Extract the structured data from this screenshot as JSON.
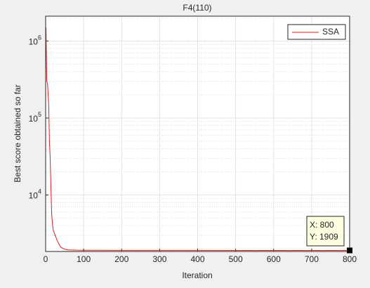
{
  "chart_data": {
    "type": "line",
    "title": "F4(110)",
    "xlabel": "Iteration",
    "ylabel": "Best score obtained so far",
    "x": [
      1,
      2,
      3,
      5,
      8,
      10,
      12,
      14,
      16,
      18,
      20,
      25,
      30,
      35,
      40,
      50,
      60,
      80,
      100,
      200,
      300,
      400,
      500,
      600,
      700,
      800
    ],
    "series": [
      {
        "name": "SSA",
        "color": "#e41a1c",
        "values": [
          1500000,
          600000,
          300000,
          280000,
          150000,
          50000,
          30000,
          12000,
          5500,
          4200,
          3500,
          3000,
          2600,
          2300,
          2100,
          1980,
          1940,
          1925,
          1920,
          1916,
          1914,
          1912,
          1911,
          1910,
          1910,
          1909
        ]
      }
    ],
    "xlim": [
      0,
      800
    ],
    "xticks": [
      0,
      100,
      200,
      300,
      400,
      500,
      600,
      700,
      800
    ],
    "ylim": [
      1850,
      2100000
    ],
    "log_y": true,
    "yticks": [
      {
        "value": 10000,
        "label": "10^4"
      },
      {
        "value": 100000,
        "label": "10^5"
      },
      {
        "value": 1000000,
        "label": "10^6"
      }
    ],
    "grid": true,
    "legend": "upper right",
    "datatip": {
      "x": 800,
      "y": 1909,
      "labels": [
        "X: 800",
        "Y: 1909"
      ]
    }
  }
}
